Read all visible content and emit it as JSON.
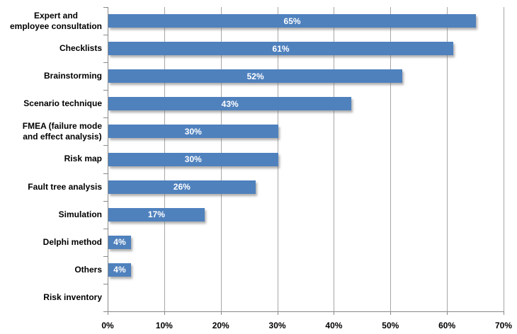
{
  "chart_data": {
    "type": "bar",
    "orientation": "horizontal",
    "title": "",
    "xlabel": "",
    "ylabel": "",
    "categories": [
      "Expert and employee consultation",
      "Checklists",
      "Brainstorming",
      "Scenario technique",
      "FMEA (failure mode and effect analysis)",
      "Risk map",
      "Fault tree analysis",
      "Simulation",
      "Delphi method",
      "Others",
      "Risk inventory"
    ],
    "category_lines": [
      [
        "Expert and",
        "employee consultation"
      ],
      [
        "Checklists"
      ],
      [
        "Brainstorming"
      ],
      [
        "Scenario technique"
      ],
      [
        "FMEA (failure mode",
        "and effect analysis)"
      ],
      [
        "Risk map"
      ],
      [
        "Fault tree analysis"
      ],
      [
        "Simulation"
      ],
      [
        "Delphi method"
      ],
      [
        "Others"
      ],
      [
        "Risk inventory"
      ]
    ],
    "values": [
      65,
      61,
      52,
      43,
      30,
      30,
      26,
      17,
      4,
      4,
      0
    ],
    "data_labels": [
      "65%",
      "61%",
      "52%",
      "43%",
      "30%",
      "30%",
      "26%",
      "17%",
      "4%",
      "4%",
      ""
    ],
    "x_ticks": [
      "0%",
      "10%",
      "20%",
      "30%",
      "40%",
      "50%",
      "60%",
      "70%"
    ],
    "x_tick_values": [
      0,
      10,
      20,
      30,
      40,
      50,
      60,
      70
    ],
    "xlim": [
      0,
      70
    ],
    "grid": true,
    "legend": false,
    "colors": {
      "bar_fill": "#4f81bd",
      "gridline": "#a6a6a6",
      "axis_line": "#898989",
      "data_label_text": "#ffffff",
      "axis_text": "#000000",
      "background": "#ffffff"
    }
  }
}
